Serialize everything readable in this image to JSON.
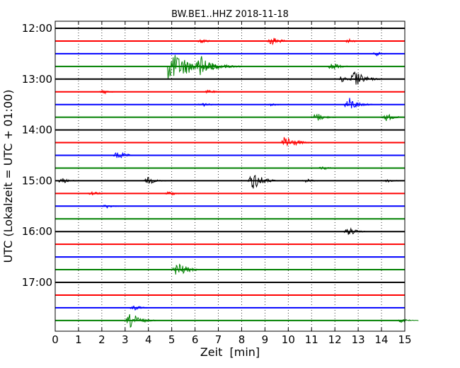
{
  "chart_data": {
    "type": "line",
    "title": "BW.BE1..HHZ 2018-11-18",
    "xlabel": "Zeit  [min]",
    "ylabel": "UTC (Lokalzeit = UTC + 01:00)",
    "xlim": [
      0,
      15
    ],
    "x_ticks": [
      0,
      1,
      2,
      3,
      4,
      5,
      6,
      7,
      8,
      9,
      10,
      11,
      12,
      13,
      14,
      15
    ],
    "x_tick_labels": [
      "0",
      "1",
      "2",
      "3",
      "4",
      "5",
      "6",
      "7",
      "8",
      "9",
      "10",
      "11",
      "12",
      "13",
      "14",
      "15"
    ],
    "grid": "vertical dotted",
    "trace_interval_min": 15,
    "y_tick_labels": [
      "12:00",
      "13:00",
      "14:00",
      "15:00",
      "16:00",
      "17:00"
    ],
    "color_cycle": [
      "#000000",
      "#ff0000",
      "#0000ff",
      "#008000"
    ],
    "series": [
      {
        "start": "12:00",
        "color": "#000000",
        "events": []
      },
      {
        "start": "12:15",
        "color": "#ff0000",
        "events": [
          {
            "t": 6.3,
            "amp": 0.3
          },
          {
            "t": 9.3,
            "amp": 0.6
          },
          {
            "t": 12.6,
            "amp": 0.25
          }
        ]
      },
      {
        "start": "12:30",
        "color": "#0000ff",
        "events": [
          {
            "t": 13.8,
            "amp": 0.25
          }
        ]
      },
      {
        "start": "12:45",
        "color": "#008000",
        "events": [
          {
            "t": 4.85,
            "amp": 1.8,
            "type": "long"
          },
          {
            "t": 6.25,
            "amp": 1.4
          },
          {
            "t": 11.9,
            "amp": 0.5
          }
        ]
      },
      {
        "start": "13:00",
        "color": "#000000",
        "events": [
          {
            "t": 12.85,
            "amp": 1.1
          },
          {
            "t": 12.3,
            "amp": 0.4
          }
        ]
      },
      {
        "start": "13:15",
        "color": "#ff0000",
        "events": [
          {
            "t": 2.1,
            "amp": 0.25
          },
          {
            "t": 6.6,
            "amp": 0.25
          }
        ]
      },
      {
        "start": "13:30",
        "color": "#0000ff",
        "events": [
          {
            "t": 12.6,
            "amp": 0.9
          },
          {
            "t": 6.3,
            "amp": 0.3
          },
          {
            "t": 9.3,
            "amp": 0.2
          }
        ]
      },
      {
        "start": "13:45",
        "color": "#008000",
        "events": [
          {
            "t": 11.2,
            "amp": 0.6
          },
          {
            "t": 14.2,
            "amp": 0.5
          }
        ]
      },
      {
        "start": "14:00",
        "color": "#000000",
        "events": []
      },
      {
        "start": "14:15",
        "color": "#ff0000",
        "events": [
          {
            "t": 9.9,
            "amp": 1.0
          }
        ]
      },
      {
        "start": "14:30",
        "color": "#0000ff",
        "events": [
          {
            "t": 2.7,
            "amp": 0.55
          }
        ]
      },
      {
        "start": "14:45",
        "color": "#008000",
        "events": [
          {
            "t": 11.5,
            "amp": 0.25
          }
        ]
      },
      {
        "start": "15:00",
        "color": "#000000",
        "events": [
          {
            "t": 8.5,
            "amp": 1.1
          },
          {
            "t": 4.0,
            "amp": 0.45
          },
          {
            "t": 0.3,
            "amp": 0.35
          },
          {
            "t": 10.8,
            "amp": 0.25
          },
          {
            "t": 14.3,
            "amp": 0.25
          }
        ]
      },
      {
        "start": "15:15",
        "color": "#ff0000",
        "events": [
          {
            "t": 1.6,
            "amp": 0.3
          },
          {
            "t": 4.9,
            "amp": 0.3
          }
        ]
      },
      {
        "start": "15:30",
        "color": "#0000ff",
        "events": [
          {
            "t": 2.2,
            "amp": 0.25
          }
        ]
      },
      {
        "start": "15:45",
        "color": "#008000",
        "events": []
      },
      {
        "start": "16:00",
        "color": "#000000",
        "events": [
          {
            "t": 12.6,
            "amp": 0.5
          }
        ]
      },
      {
        "start": "16:15",
        "color": "#ff0000",
        "events": []
      },
      {
        "start": "16:30",
        "color": "#0000ff",
        "events": []
      },
      {
        "start": "16:45",
        "color": "#008000",
        "events": [
          {
            "t": 5.25,
            "amp": 1.0
          }
        ]
      },
      {
        "start": "17:00",
        "color": "#000000",
        "events": []
      },
      {
        "start": "17:15",
        "color": "#ff0000",
        "events": []
      },
      {
        "start": "17:30",
        "color": "#0000ff",
        "events": [
          {
            "t": 3.4,
            "amp": 0.35
          }
        ]
      },
      {
        "start": "17:45",
        "color": "#008000",
        "events": [
          {
            "t": 3.25,
            "amp": 1.0
          },
          {
            "t": 14.9,
            "amp": 0.3
          }
        ]
      }
    ]
  }
}
